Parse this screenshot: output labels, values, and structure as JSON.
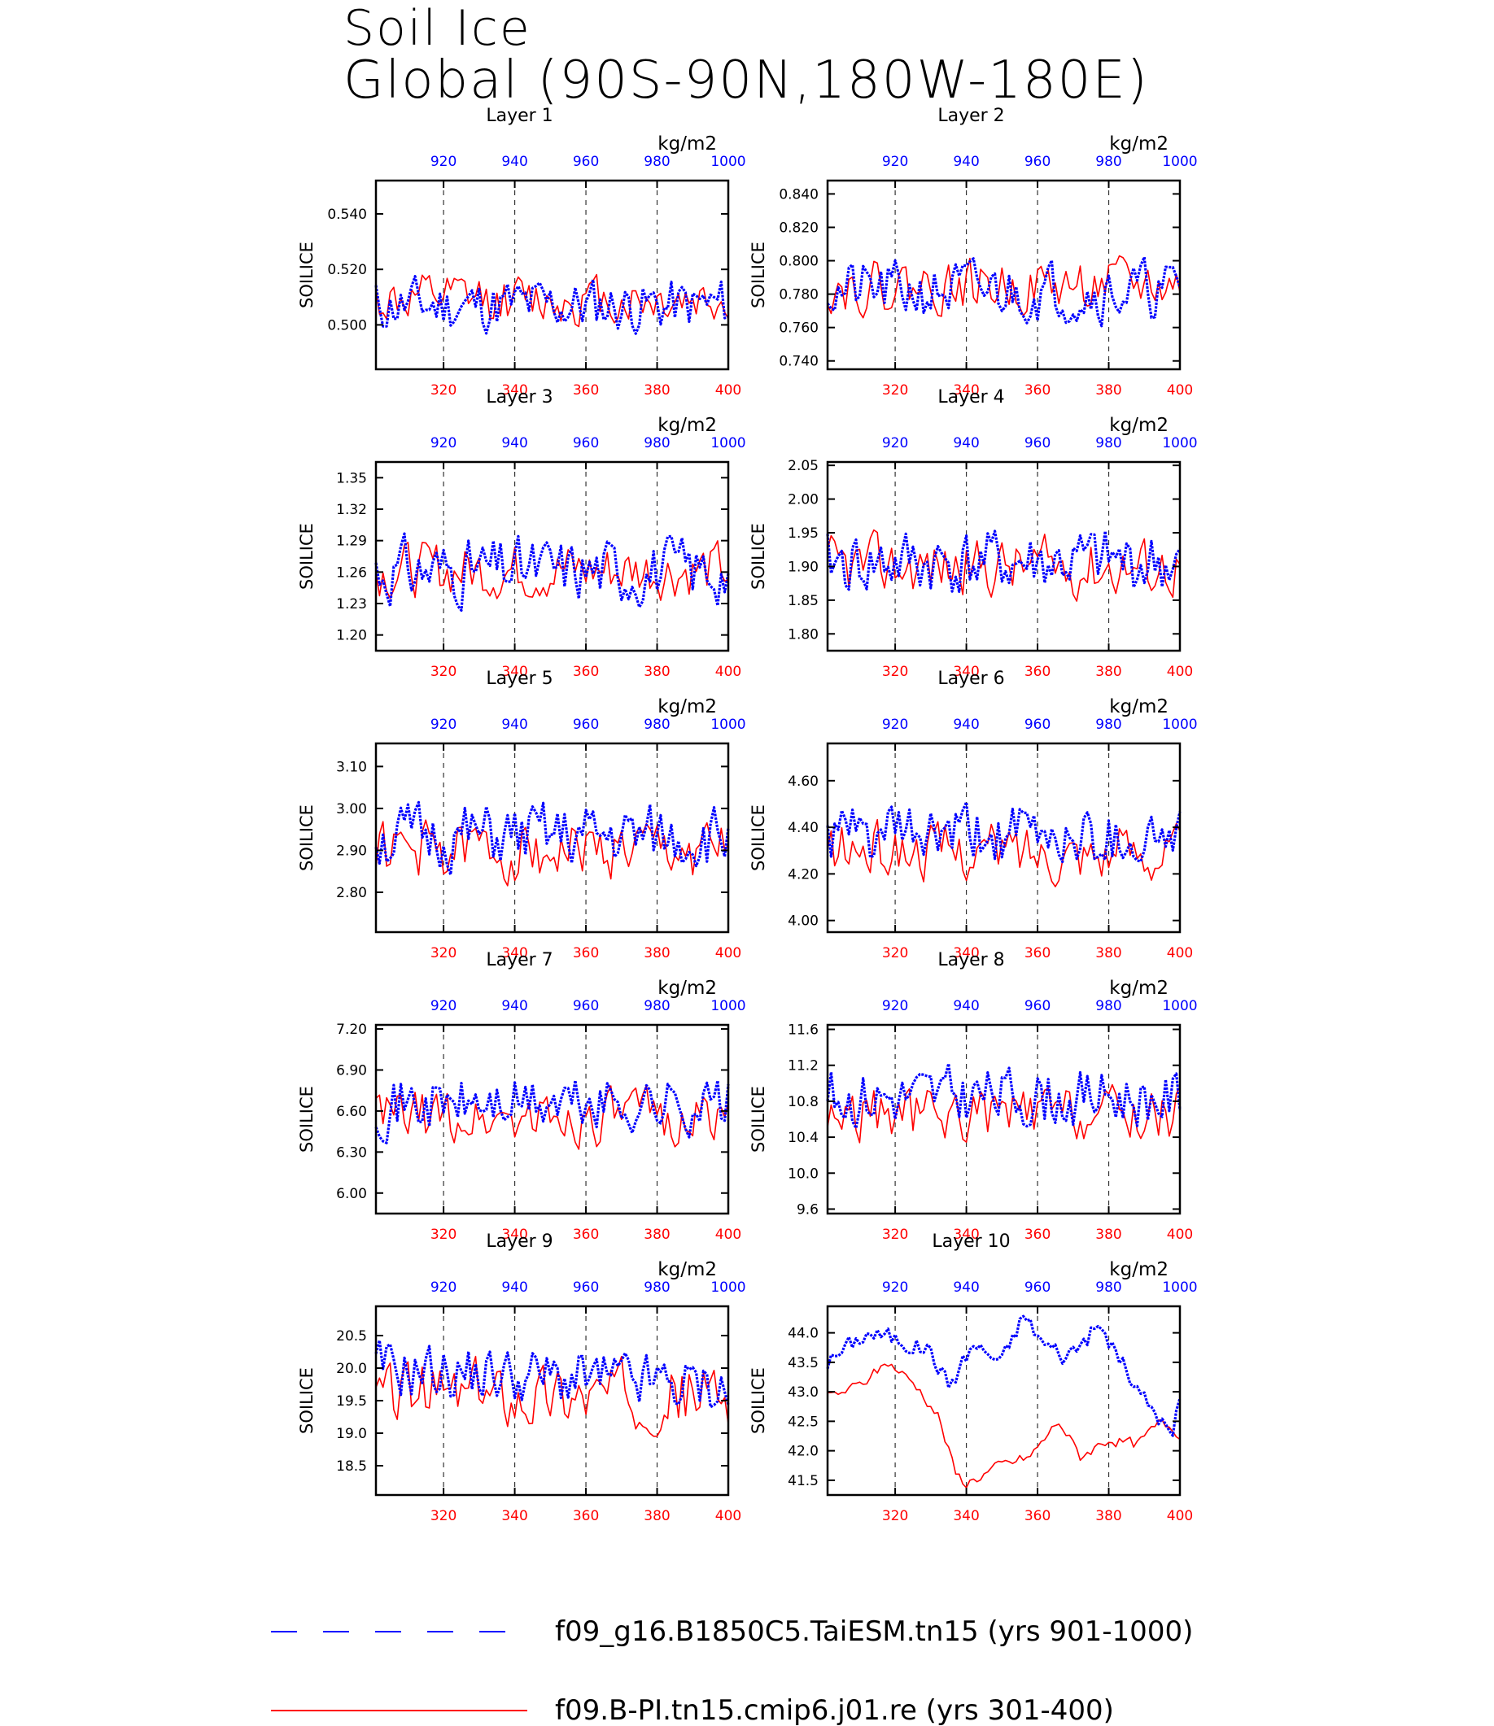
{
  "title": "Soil Ice",
  "subtitle": "Global (90S-90N,180W-180E)",
  "units": "kg/m2",
  "ylabel": "SOILICE",
  "colors": {
    "case1": "#0000ff",
    "case2": "#ff0000",
    "axis": "#000000"
  },
  "bottom_axis": {
    "range": [
      301,
      400
    ],
    "ticks": [
      320,
      340,
      360,
      380,
      400
    ]
  },
  "top_axis": {
    "range": [
      901,
      1000
    ],
    "ticks": [
      920,
      940,
      960,
      980,
      1000
    ]
  },
  "legend": [
    {
      "label": "f09_g16.B1850C5.TaiESM.tn15 (yrs 901-1000)",
      "color": "#0000ff",
      "style": "dashed"
    },
    {
      "label": "f09.B-PI.tn15.cmip6.j01.re (yrs 301-400)",
      "color": "#ff0000",
      "style": "solid"
    }
  ],
  "chart_data": [
    {
      "type": "line",
      "title": "Layer 1",
      "ylim": [
        0.484,
        0.552
      ],
      "yticks": [
        "0.500",
        "0.520",
        "0.540"
      ],
      "blue": {
        "base": 0.507,
        "amp": 0.009,
        "trend": 0,
        "seed": 11
      },
      "red": {
        "base": 0.509,
        "amp": 0.008,
        "trend": 0,
        "seed": 12
      }
    },
    {
      "type": "line",
      "title": "Layer 2",
      "ylim": [
        0.735,
        0.848
      ],
      "yticks": [
        "0.740",
        "0.760",
        "0.780",
        "0.800",
        "0.820",
        "0.840"
      ],
      "blue": {
        "base": 0.782,
        "amp": 0.016,
        "trend": 0,
        "seed": 21
      },
      "red": {
        "base": 0.785,
        "amp": 0.014,
        "trend": 0,
        "seed": 22
      }
    },
    {
      "type": "line",
      "title": "Layer 3",
      "ylim": [
        1.185,
        1.365
      ],
      "yticks": [
        "1.20",
        "1.23",
        "1.26",
        "1.29",
        "1.32",
        "1.35"
      ],
      "blue": {
        "base": 1.262,
        "amp": 0.028,
        "trend": 0,
        "seed": 31
      },
      "red": {
        "base": 1.262,
        "amp": 0.024,
        "trend": 0,
        "seed": 32
      }
    },
    {
      "type": "line",
      "title": "Layer 4",
      "ylim": [
        1.775,
        2.055
      ],
      "yticks": [
        "1.80",
        "1.85",
        "1.90",
        "1.95",
        "2.00",
        "2.05"
      ],
      "blue": {
        "base": 1.905,
        "amp": 0.045,
        "trend": 0,
        "seed": 41
      },
      "red": {
        "base": 1.9,
        "amp": 0.04,
        "trend": 0,
        "seed": 42
      }
    },
    {
      "type": "line",
      "title": "Layer 5",
      "ylim": [
        2.705,
        3.155
      ],
      "yticks": [
        "2.80",
        "2.90",
        "3.00",
        "3.10"
      ],
      "blue": {
        "base": 2.93,
        "amp": 0.07,
        "trend": 0,
        "seed": 51
      },
      "red": {
        "base": 2.9,
        "amp": 0.065,
        "trend": 0,
        "seed": 52
      }
    },
    {
      "type": "line",
      "title": "Layer 6",
      "ylim": [
        3.95,
        4.76
      ],
      "yticks": [
        "4.00",
        "4.20",
        "4.40",
        "4.60"
      ],
      "blue": {
        "base": 4.36,
        "amp": 0.12,
        "trend": 0,
        "seed": 61
      },
      "red": {
        "base": 4.3,
        "amp": 0.11,
        "trend": 0,
        "seed": 62
      }
    },
    {
      "type": "line",
      "title": "Layer 7",
      "ylim": [
        5.85,
        7.23
      ],
      "yticks": [
        "6.00",
        "6.30",
        "6.60",
        "6.90",
        "7.20"
      ],
      "blue": {
        "base": 6.65,
        "amp": 0.19,
        "trend": 0,
        "seed": 71
      },
      "red": {
        "base": 6.55,
        "amp": 0.18,
        "trend": 0,
        "seed": 72
      }
    },
    {
      "type": "line",
      "title": "Layer 8",
      "ylim": [
        9.55,
        11.65
      ],
      "yticks": [
        "9.6",
        "10.0",
        "10.4",
        "10.8",
        "11.2",
        "11.6"
      ],
      "blue": {
        "base": 10.85,
        "amp": 0.3,
        "trend": 0,
        "seed": 81
      },
      "red": {
        "base": 10.65,
        "amp": 0.28,
        "trend": 0,
        "seed": 82
      }
    },
    {
      "type": "line",
      "title": "Layer 9",
      "ylim": [
        18.05,
        20.95
      ],
      "yticks": [
        "18.5",
        "19.0",
        "19.5",
        "20.0",
        "20.5"
      ],
      "blue": {
        "base": 20.0,
        "amp": 0.4,
        "trend": -0.3,
        "seed": 91
      },
      "red": {
        "base": 19.6,
        "amp": 0.45,
        "trend": 0,
        "seed": 92
      }
    },
    {
      "type": "line",
      "title": "Layer 10",
      "ylim": [
        41.25,
        44.45
      ],
      "yticks": [
        "41.5",
        "42.0",
        "42.5",
        "43.0",
        "43.5",
        "44.0"
      ],
      "blue": {
        "knots": [
          [
            301,
            43.5
          ],
          [
            312,
            44.0
          ],
          [
            320,
            43.9
          ],
          [
            330,
            43.7
          ],
          [
            335,
            43.1
          ],
          [
            342,
            43.8
          ],
          [
            350,
            43.5
          ],
          [
            356,
            44.3
          ],
          [
            362,
            43.8
          ],
          [
            368,
            43.6
          ],
          [
            377,
            44.1
          ],
          [
            382,
            43.7
          ],
          [
            388,
            43.0
          ],
          [
            394,
            42.6
          ],
          [
            398,
            42.2
          ],
          [
            400,
            42.9
          ]
        ],
        "amp": 0.15,
        "seed": 101
      },
      "red": {
        "knots": [
          [
            301,
            42.9
          ],
          [
            310,
            43.1
          ],
          [
            318,
            43.5
          ],
          [
            326,
            43.1
          ],
          [
            332,
            42.6
          ],
          [
            337,
            41.6
          ],
          [
            340,
            41.45
          ],
          [
            350,
            41.75
          ],
          [
            358,
            41.9
          ],
          [
            362,
            42.2
          ],
          [
            366,
            42.5
          ],
          [
            372,
            41.9
          ],
          [
            380,
            42.2
          ],
          [
            388,
            42.1
          ],
          [
            395,
            42.5
          ],
          [
            400,
            42.3
          ]
        ],
        "amp": 0.09,
        "seed": 102
      }
    }
  ]
}
